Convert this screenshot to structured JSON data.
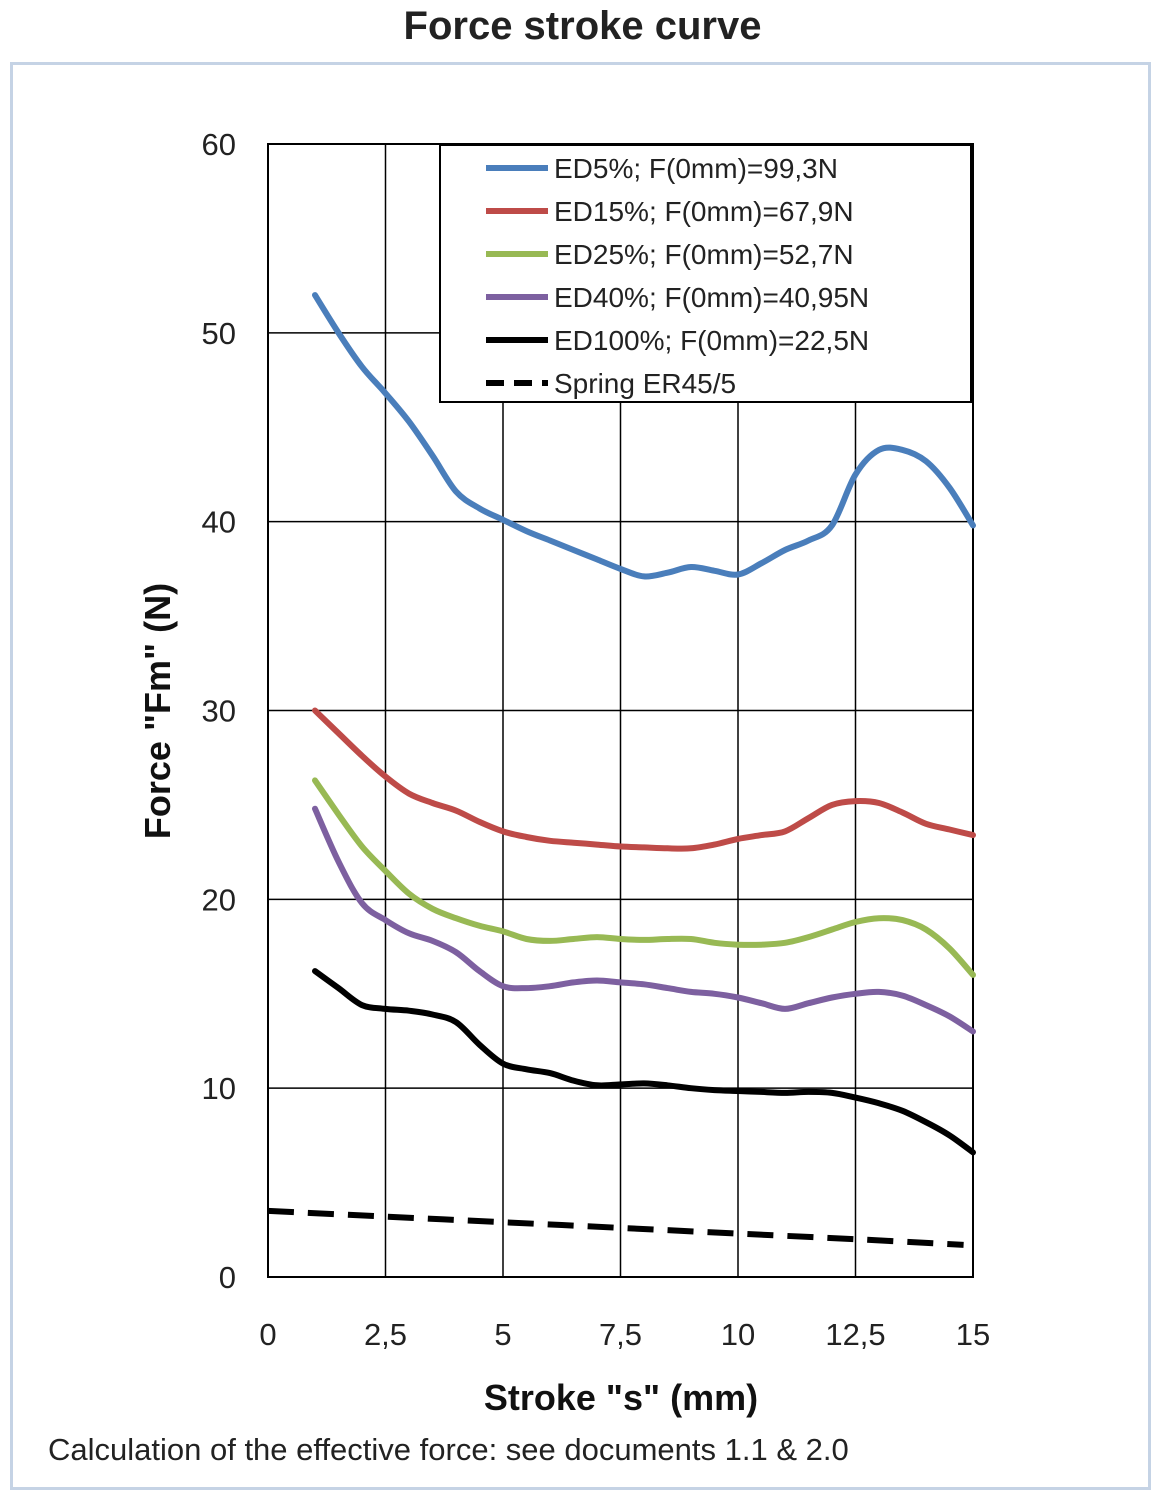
{
  "title": "Force stroke curve",
  "footnote": "Calculation of the effective force: see documents 1.1 & 2.0",
  "chart_data": {
    "type": "line",
    "xlabel": "Stroke \"s\" (mm)",
    "ylabel": "Force \"Fm\" (N)",
    "xlim": [
      0,
      15
    ],
    "ylim": [
      0,
      60
    ],
    "x_ticks": [
      "0",
      "2,5",
      "5",
      "7,5",
      "10",
      "12,5",
      "15"
    ],
    "y_ticks": [
      "0",
      "10",
      "20",
      "30",
      "40",
      "50",
      "60"
    ],
    "grid": true,
    "legend": "top-right",
    "series": [
      {
        "name": "ED5%; F(0mm)=99,3N",
        "color": "#4a7ebb",
        "dashed": false,
        "x": [
          1,
          1.5,
          2,
          2.5,
          3,
          3.5,
          4,
          4.5,
          5,
          5.5,
          6,
          6.5,
          7,
          7.5,
          8,
          8.5,
          9,
          9.5,
          10,
          10.5,
          11,
          11.5,
          12,
          12.5,
          13,
          13.5,
          14,
          14.5,
          15
        ],
        "y": [
          52,
          50,
          48.2,
          46.8,
          45.3,
          43.5,
          41.6,
          40.7,
          40.1,
          39.5,
          39.0,
          38.5,
          38.0,
          37.5,
          37.1,
          37.3,
          37.6,
          37.4,
          37.2,
          37.8,
          38.5,
          39.0,
          39.8,
          42.5,
          43.8,
          43.8,
          43.2,
          41.8,
          39.8
        ]
      },
      {
        "name": "ED15%; F(0mm)=67,9N",
        "color": "#be4b48",
        "dashed": false,
        "x": [
          1,
          1.5,
          2,
          2.5,
          3,
          3.5,
          4,
          4.5,
          5,
          5.5,
          6,
          6.5,
          7,
          7.5,
          8,
          8.5,
          9,
          9.5,
          10,
          10.5,
          11,
          11.5,
          12,
          12.5,
          13,
          13.5,
          14,
          14.5,
          15
        ],
        "y": [
          30,
          28.8,
          27.6,
          26.5,
          25.6,
          25.1,
          24.7,
          24.1,
          23.6,
          23.3,
          23.1,
          23.0,
          22.9,
          22.8,
          22.75,
          22.7,
          22.7,
          22.9,
          23.2,
          23.4,
          23.6,
          24.3,
          25.0,
          25.2,
          25.1,
          24.6,
          24.0,
          23.7,
          23.4
        ]
      },
      {
        "name": "ED25%; F(0mm)=52,7N",
        "color": "#98b954",
        "dashed": false,
        "x": [
          1,
          1.5,
          2,
          2.5,
          3,
          3.5,
          4,
          4.5,
          5,
          5.5,
          6,
          6.5,
          7,
          7.5,
          8,
          8.5,
          9,
          9.5,
          10,
          10.5,
          11,
          11.5,
          12,
          12.5,
          13,
          13.5,
          14,
          14.5,
          15
        ],
        "y": [
          26.3,
          24.5,
          22.8,
          21.5,
          20.3,
          19.5,
          19.0,
          18.6,
          18.3,
          17.9,
          17.8,
          17.9,
          18.0,
          17.9,
          17.85,
          17.9,
          17.9,
          17.7,
          17.6,
          17.6,
          17.7,
          18.0,
          18.4,
          18.8,
          19.0,
          18.9,
          18.4,
          17.4,
          16.0
        ]
      },
      {
        "name": "ED40%; F(0mm)=40,95N",
        "color": "#7d60a0",
        "dashed": false,
        "x": [
          1,
          1.5,
          2,
          2.5,
          3,
          3.5,
          4,
          4.5,
          5,
          5.5,
          6,
          6.5,
          7,
          7.5,
          8,
          8.5,
          9,
          9.5,
          10,
          10.5,
          11,
          11.5,
          12,
          12.5,
          13,
          13.5,
          14,
          14.5,
          15
        ],
        "y": [
          24.8,
          22.0,
          19.8,
          18.9,
          18.2,
          17.8,
          17.2,
          16.2,
          15.4,
          15.3,
          15.4,
          15.6,
          15.7,
          15.6,
          15.5,
          15.3,
          15.1,
          15.0,
          14.8,
          14.5,
          14.2,
          14.5,
          14.8,
          15.0,
          15.1,
          14.9,
          14.4,
          13.8,
          13.0
        ]
      },
      {
        "name": "ED100%; F(0mm)=22,5N",
        "color": "#000000",
        "dashed": false,
        "x": [
          1,
          1.5,
          2,
          2.5,
          3,
          3.5,
          4,
          4.5,
          5,
          5.5,
          6,
          6.5,
          7,
          7.5,
          8,
          8.5,
          9,
          9.5,
          10,
          10.5,
          11,
          11.5,
          12,
          12.5,
          13,
          13.5,
          14,
          14.5,
          15
        ],
        "y": [
          16.2,
          15.3,
          14.4,
          14.2,
          14.1,
          13.9,
          13.5,
          12.3,
          11.3,
          11.0,
          10.8,
          10.4,
          10.15,
          10.2,
          10.25,
          10.15,
          10.0,
          9.9,
          9.85,
          9.8,
          9.75,
          9.8,
          9.75,
          9.5,
          9.2,
          8.8,
          8.2,
          7.5,
          6.6
        ]
      },
      {
        "name": "Spring ER45/5",
        "color": "#000000",
        "dashed": true,
        "x": [
          0,
          2.5,
          5,
          7.5,
          10,
          12.5,
          14.8
        ],
        "y": [
          3.5,
          3.2,
          2.9,
          2.6,
          2.3,
          2.0,
          1.7
        ]
      }
    ]
  }
}
